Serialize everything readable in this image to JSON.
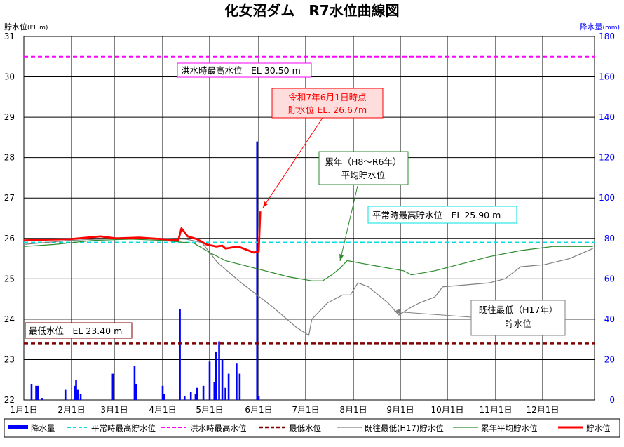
{
  "chart_data": {
    "type": "line",
    "title": "化女沼ダム　R7水位曲線図",
    "ylabel_left": "貯水位",
    "ylabel_left_unit": "(EL.m)",
    "ylabel_right": "降水量",
    "ylabel_right_unit": "(mm)",
    "ylim_left": [
      22,
      31
    ],
    "ylim_right": [
      0,
      180
    ],
    "yticks_left": [
      "22",
      "23",
      "24",
      "25",
      "26",
      "27",
      "28",
      "29",
      "30",
      "31"
    ],
    "yticks_right": [
      "0",
      "20",
      "40",
      "60",
      "80",
      "100",
      "120",
      "140",
      "160",
      "180"
    ],
    "x_tick_labels": [
      "1月1日",
      "2月1日",
      "3月1日",
      "4月1日",
      "5月1日",
      "6月1日",
      "7月1日",
      "8月1日",
      "9月1日",
      "10月1日",
      "11月1日",
      "12月1日"
    ],
    "grid": true,
    "legend_position": "bottom",
    "reference_lines": [
      {
        "name": "洪水時最高水位",
        "value": 30.5,
        "color": "#ff00ff"
      },
      {
        "name": "平常時最高貯水位",
        "value": 25.9,
        "color": "#00e0e0"
      },
      {
        "name": "最低水位",
        "value": 23.4,
        "color": "#800000"
      }
    ],
    "annotations": {
      "flood": "洪水時最高水位　EL 30.50 m",
      "current_line1": "令和7年6月1日時点",
      "current_line2": "貯水位 EL. 26.67m",
      "avg_line1": "累年（H8～R6年）",
      "avg_line2": "平均貯水位",
      "normal": "平常時最高貯水位　EL 25.90 m",
      "min_line1": "既往最低（H17年）",
      "min_line2": "貯水位",
      "low": "最低水位　EL 23.40 m"
    },
    "legend": [
      "降水量",
      "平常時最高貯水位",
      "洪水時最高水位",
      "最低水位",
      "既往最低(H17)貯水位",
      "累年平均貯水位",
      "貯水位"
    ],
    "series": [
      {
        "name": "貯水位",
        "color": "#ff0000",
        "x": [
          0,
          15,
          30,
          50,
          60,
          75,
          90,
          100,
          102,
          106,
          112,
          118,
          124,
          128,
          130,
          138,
          148,
          151,
          152
        ],
        "y": [
          25.95,
          25.97,
          25.98,
          26.05,
          26.0,
          26.02,
          25.98,
          25.95,
          26.25,
          26.05,
          25.98,
          25.85,
          25.8,
          25.82,
          25.75,
          25.8,
          25.65,
          25.68,
          26.67
        ]
      },
      {
        "name": "累年平均貯水位",
        "color": "#2e8b2e",
        "x": [
          0,
          20,
          45,
          70,
          90,
          110,
          120,
          130,
          140,
          155,
          170,
          185,
          192,
          198,
          203,
          208,
          215,
          230,
          245,
          250,
          258,
          265,
          275,
          290,
          300,
          320,
          340,
          364
        ],
        "y": [
          25.8,
          25.85,
          25.95,
          25.98,
          25.95,
          25.88,
          25.65,
          25.45,
          25.35,
          25.2,
          25.05,
          24.95,
          24.95,
          25.1,
          25.25,
          25.45,
          25.4,
          25.3,
          25.2,
          25.1,
          25.15,
          25.2,
          25.3,
          25.45,
          25.55,
          25.7,
          25.8,
          25.8
        ]
      },
      {
        "name": "既往最低(H17)貯水位",
        "color": "#808080",
        "x": [
          0,
          30,
          60,
          90,
          105,
          115,
          125,
          140,
          160,
          175,
          183,
          185,
          190,
          195,
          205,
          210,
          215,
          222,
          235,
          242,
          250,
          255,
          265,
          270,
          285,
          300,
          310,
          320,
          335,
          350,
          364
        ],
        "y": [
          25.85,
          25.95,
          26.0,
          26.0,
          25.98,
          25.9,
          25.4,
          24.9,
          24.3,
          23.8,
          23.6,
          24.0,
          24.2,
          24.4,
          24.6,
          24.6,
          24.9,
          24.8,
          24.4,
          24.1,
          24.3,
          24.4,
          24.55,
          24.8,
          24.85,
          24.9,
          25.0,
          25.3,
          25.35,
          25.5,
          25.75
        ]
      }
    ],
    "bar_series": {
      "name": "降水量",
      "color": "#0000ff",
      "x": [
        5,
        8,
        9,
        12,
        27,
        33,
        34,
        35,
        37,
        58,
        72,
        73,
        90,
        91,
        101,
        104,
        108,
        111,
        112,
        116,
        120,
        123,
        124,
        126,
        128,
        130,
        132,
        137,
        139,
        150,
        151
      ],
      "y": [
        8,
        7,
        7,
        1,
        5,
        7,
        10,
        5,
        3,
        13,
        17,
        8,
        7,
        3,
        45,
        2,
        4,
        3,
        6,
        7,
        19,
        9,
        24,
        29,
        20,
        6,
        13,
        18,
        13,
        128,
        2
      ]
    }
  }
}
